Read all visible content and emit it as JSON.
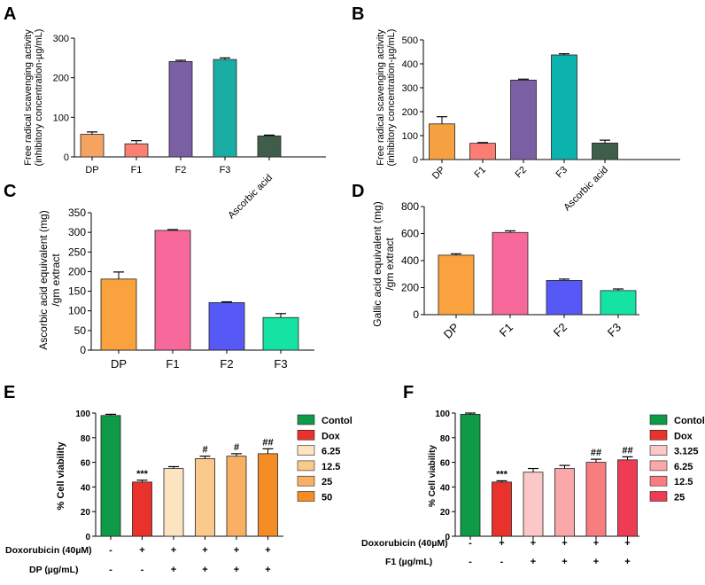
{
  "chart_data": [
    {
      "panel": "A",
      "type": "bar",
      "font": "serif",
      "ylabel": [
        "Free radical scavenging activity",
        "(inhibitory concentration-µg/mL)"
      ],
      "ylim": [
        0,
        300
      ],
      "yticks": [
        0,
        100,
        200,
        300
      ],
      "categories": [
        "DP",
        "F1",
        "F2",
        "F3",
        "Ascorbic acid"
      ],
      "values": [
        57,
        33,
        241,
        246,
        53
      ],
      "errors": [
        6,
        8,
        3,
        4,
        2
      ],
      "colors": [
        "#f4a460",
        "#fa8072",
        "#7b5fa5",
        "#1aada3",
        "#3f5e4a"
      ]
    },
    {
      "panel": "B",
      "type": "bar",
      "font": "sans",
      "ylabel": [
        "Free radical scavenging activity",
        "(inhibitory concentration-µg/mL)"
      ],
      "ylim": [
        0,
        500
      ],
      "yticks": [
        0,
        100,
        200,
        300,
        400,
        500
      ],
      "categories": [
        "DP",
        "F1",
        "F2",
        "F3",
        "Ascorbic acid"
      ],
      "values": [
        149,
        68,
        332,
        437,
        69
      ],
      "errors": [
        30,
        3,
        4,
        5,
        12
      ],
      "colors": [
        "#f5a142",
        "#fb7d74",
        "#7b5fa5",
        "#0cb2ad",
        "#3f5e4a"
      ]
    },
    {
      "panel": "C",
      "type": "bar",
      "font": "sans",
      "ylabel": [
        "Ascorbic acid equivalent (mg)",
        "/gm extract"
      ],
      "ylim": [
        0,
        350
      ],
      "yticks": [
        0,
        50,
        100,
        150,
        200,
        250,
        300,
        350
      ],
      "categories": [
        "DP",
        "F1",
        "F2",
        "F3"
      ],
      "values": [
        181,
        305,
        121,
        83
      ],
      "errors": [
        18,
        2,
        2,
        10
      ],
      "colors": [
        "#f9a23e",
        "#f6699a",
        "#5659f5",
        "#14e3a4"
      ]
    },
    {
      "panel": "D",
      "type": "bar",
      "font": "sans",
      "ylabel": [
        "Gallic acid equivalent (mg)",
        "/gm extract"
      ],
      "ylim": [
        0,
        800
      ],
      "yticks": [
        0,
        200,
        400,
        600,
        800
      ],
      "categories": [
        "DP",
        "F1",
        "F2",
        "F3"
      ],
      "values": [
        440,
        608,
        253,
        178
      ],
      "errors": [
        10,
        12,
        10,
        12
      ],
      "colors": [
        "#f9a23e",
        "#f6699a",
        "#5659f5",
        "#14e3a4"
      ]
    },
    {
      "panel": "E",
      "type": "bar",
      "font": "sans",
      "ylabel": [
        "% Cell viability"
      ],
      "ylim": [
        0,
        100
      ],
      "yticks": [
        0,
        20,
        40,
        60,
        80,
        100
      ],
      "categories": [
        "Contol",
        "Dox",
        "6.25",
        "12.5",
        "25",
        "50"
      ],
      "values": [
        98,
        44,
        55,
        63,
        65,
        67
      ],
      "errors": [
        1,
        1.5,
        1.5,
        2,
        2,
        4
      ],
      "annotations": [
        "",
        "***",
        "",
        "#",
        "#",
        "##"
      ],
      "colors": [
        "#0f9a48",
        "#e8322b",
        "#fde4c1",
        "#fbc98a",
        "#fab063",
        "#f58d25"
      ],
      "legend": [
        "Contol",
        "Dox",
        "6.25",
        "12.5",
        "25",
        "50"
      ],
      "row_labels": [
        "Doxorubicin (40µM)",
        "DP (µg/mL)"
      ],
      "row_signs": [
        [
          "-",
          "+",
          "+",
          "+",
          "+",
          "+"
        ],
        [
          "-",
          "-",
          "+",
          "+",
          "+",
          "+"
        ]
      ]
    },
    {
      "panel": "F",
      "type": "bar",
      "font": "sans",
      "ylabel": [
        "% Cell viability"
      ],
      "ylim": [
        0,
        100
      ],
      "yticks": [
        0,
        20,
        40,
        60,
        80,
        100
      ],
      "categories": [
        "Contol",
        "Dox",
        "3.125",
        "6.25",
        "12.5",
        "25"
      ],
      "values": [
        99,
        44,
        52,
        55,
        60,
        62
      ],
      "errors": [
        1,
        1,
        3,
        2.5,
        2.5,
        2.5
      ],
      "annotations": [
        "",
        "***",
        "",
        "",
        "##",
        "##"
      ],
      "colors": [
        "#0f9a48",
        "#e8322b",
        "#fcc7c7",
        "#f9a7a8",
        "#f77d7f",
        "#ef3c55"
      ],
      "legend": [
        "Contol",
        "Dox",
        "3.125",
        "6.25",
        "12.5",
        "25"
      ],
      "row_labels": [
        "Doxorubicin (40µM)",
        "F1 (µg/mL)"
      ],
      "row_signs": [
        [
          "-",
          "+",
          "+",
          "+",
          "+",
          "+"
        ],
        [
          "-",
          "-",
          "+",
          "+",
          "+",
          "+"
        ]
      ]
    }
  ]
}
